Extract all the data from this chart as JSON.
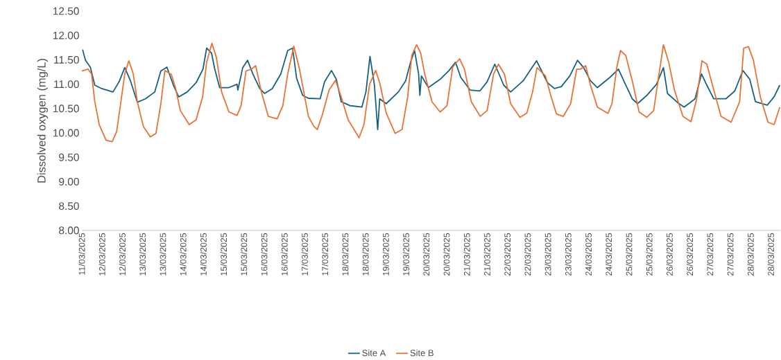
{
  "chart_data": {
    "type": "line",
    "ylabel": "Dissolved oxygen (mg/L)",
    "xlim": [
      "2025-03-11T12:00",
      "2025-03-28T17:46"
    ],
    "ylim": [
      8,
      12.5
    ],
    "yticks": [
      {
        "value": 8,
        "label": "8.00"
      },
      {
        "value": 8.5,
        "label": "8.50"
      },
      {
        "value": 9,
        "label": "9.00"
      },
      {
        "value": 9.5,
        "label": "9.50"
      },
      {
        "value": 10,
        "label": "10.00"
      },
      {
        "value": 10.5,
        "label": "10.50"
      },
      {
        "value": 11,
        "label": "11.00"
      },
      {
        "value": 11.5,
        "label": "11.50"
      },
      {
        "value": 12,
        "label": "12.00"
      },
      {
        "value": 12.5,
        "label": "12.50"
      }
    ],
    "xticks": [
      {
        "value": "2025-03-11T12:00",
        "label": "11/03/2025"
      },
      {
        "value": "2025-03-12T00:00",
        "label": "12/03/2025"
      },
      {
        "value": "2025-03-12T12:00",
        "label": "12/03/2025"
      },
      {
        "value": "2025-03-13T00:00",
        "label": "13/03/2025"
      },
      {
        "value": "2025-03-13T12:00",
        "label": "13/03/2025"
      },
      {
        "value": "2025-03-14T00:00",
        "label": "14/03/2025"
      },
      {
        "value": "2025-03-14T12:00",
        "label": "14/03/2025"
      },
      {
        "value": "2025-03-15T00:00",
        "label": "15/03/2025"
      },
      {
        "value": "2025-03-15T12:00",
        "label": "15/03/2025"
      },
      {
        "value": "2025-03-16T00:00",
        "label": "16/03/2025"
      },
      {
        "value": "2025-03-16T12:00",
        "label": "16/03/2025"
      },
      {
        "value": "2025-03-17T00:00",
        "label": "17/03/2025"
      },
      {
        "value": "2025-03-17T12:00",
        "label": "17/03/2025"
      },
      {
        "value": "2025-03-18T00:00",
        "label": "18/03/2025"
      },
      {
        "value": "2025-03-18T12:00",
        "label": "18/03/2025"
      },
      {
        "value": "2025-03-19T00:00",
        "label": "19/03/2025"
      },
      {
        "value": "2025-03-19T12:00",
        "label": "19/03/2025"
      },
      {
        "value": "2025-03-20T00:00",
        "label": "20/03/2025"
      },
      {
        "value": "2025-03-20T12:00",
        "label": "20/03/2025"
      },
      {
        "value": "2025-03-21T00:00",
        "label": "21/03/2025"
      },
      {
        "value": "2025-03-21T12:00",
        "label": "21/03/2025"
      },
      {
        "value": "2025-03-22T00:00",
        "label": "22/03/2025"
      },
      {
        "value": "2025-03-22T12:00",
        "label": "22/03/2025"
      },
      {
        "value": "2025-03-23T00:00",
        "label": "23/03/2025"
      },
      {
        "value": "2025-03-23T12:00",
        "label": "23/03/2025"
      },
      {
        "value": "2025-03-24T00:00",
        "label": "24/03/2025"
      },
      {
        "value": "2025-03-24T12:00",
        "label": "24/03/2025"
      },
      {
        "value": "2025-03-25T00:00",
        "label": "25/03/2025"
      },
      {
        "value": "2025-03-25T12:00",
        "label": "25/03/2025"
      },
      {
        "value": "2025-03-26T00:00",
        "label": "26/03/2025"
      },
      {
        "value": "2025-03-26T12:00",
        "label": "26/03/2025"
      },
      {
        "value": "2025-03-27T00:00",
        "label": "27/03/2025"
      },
      {
        "value": "2025-03-27T12:00",
        "label": "27/03/2025"
      },
      {
        "value": "2025-03-28T00:00",
        "label": "28/03/2025"
      },
      {
        "value": "2025-03-28T12:00",
        "label": "28/03/2025"
      }
    ],
    "grid": false,
    "legend": "bottom",
    "marker": "none",
    "line_style": "solid",
    "series": [
      {
        "name": "Site A",
        "color": "#156082",
        "x": [
          "2025-03-11T12:29",
          "2025-03-11T14:10",
          "2025-03-11T17:02",
          "2025-03-11T19:41",
          "2025-03-11T23:46",
          "2025-03-12T06:29",
          "2025-03-12T10:05",
          "2025-03-12T13:26",
          "2025-03-12T16:48",
          "2025-03-12T20:53",
          "2025-03-13T01:41",
          "2025-03-13T07:12",
          "2025-03-13T10:48",
          "2025-03-13T14:24",
          "2025-03-13T18:14",
          "2025-03-13T21:22",
          "2025-03-14T02:24",
          "2025-03-14T07:41",
          "2025-03-14T11:46",
          "2025-03-14T13:55",
          "2025-03-14T16:48",
          "2025-03-14T18:43",
          "2025-03-14T21:36",
          "2025-03-15T03:07",
          "2025-03-15T07:55",
          "2025-03-15T08:24",
          "2025-03-15T11:17",
          "2025-03-15T14:10",
          "2025-03-15T17:17",
          "2025-03-15T21:22",
          "2025-03-16T00:14",
          "2025-03-16T04:48",
          "2025-03-16T09:50",
          "2025-03-16T13:55",
          "2025-03-16T16:48",
          "2025-03-16T19:12",
          "2025-03-16T22:48",
          "2025-03-17T02:10",
          "2025-03-17T09:07",
          "2025-03-17T11:46",
          "2025-03-17T15:50",
          "2025-03-17T18:43",
          "2025-03-17T21:36",
          "2025-03-18T02:53",
          "2025-03-18T09:50",
          "2025-03-18T12:14",
          "2025-03-18T14:38",
          "2025-03-18T17:17",
          "2025-03-18T19:12",
          "2025-03-18T20:24",
          "2025-03-19T00:14",
          "2025-03-19T07:26",
          "2025-03-19T11:46",
          "2025-03-19T14:38",
          "2025-03-19T17:02",
          "2025-03-19T19:26",
          "2025-03-19T20:10",
          "2025-03-19T21:07",
          "2025-03-20T01:12",
          "2025-03-20T08:10",
          "2025-03-20T13:26",
          "2025-03-20T17:17",
          "2025-03-20T20:24",
          "2025-03-21T01:55",
          "2025-03-21T07:41",
          "2025-03-21T12:00",
          "2025-03-21T16:34",
          "2025-03-21T21:50",
          "2025-03-22T01:55",
          "2025-03-22T09:22",
          "2025-03-22T17:17",
          "2025-03-22T23:46",
          "2025-03-23T03:50",
          "2025-03-23T07:55",
          "2025-03-23T12:58",
          "2025-03-23T17:31",
          "2025-03-23T21:07",
          "2025-03-24T01:12",
          "2025-03-24T05:17",
          "2025-03-24T12:43",
          "2025-03-24T17:46",
          "2025-03-24T20:53",
          "2025-03-25T01:55",
          "2025-03-25T05:02",
          "2025-03-25T10:34",
          "2025-03-25T16:19",
          "2025-03-25T20:24",
          "2025-03-25T22:48",
          "2025-03-26T04:34",
          "2025-03-26T08:38",
          "2025-03-26T15:07",
          "2025-03-26T18:58",
          "2025-03-26T21:22",
          "2025-03-27T02:10",
          "2025-03-27T09:22",
          "2025-03-27T14:38",
          "2025-03-27T19:26",
          "2025-03-27T23:31",
          "2025-03-28T02:53",
          "2025-03-28T09:50",
          "2025-03-28T13:55",
          "2025-03-28T17:17"
        ],
        "values": [
          11.71,
          11.49,
          11.35,
          10.98,
          10.91,
          10.84,
          11.05,
          11.34,
          11.07,
          10.63,
          10.7,
          10.84,
          11.27,
          11.35,
          10.98,
          10.74,
          10.84,
          11.03,
          11.31,
          11.74,
          11.64,
          11.31,
          10.93,
          10.93,
          11.0,
          10.88,
          11.34,
          11.49,
          11.21,
          10.91,
          10.81,
          10.91,
          11.21,
          11.69,
          11.74,
          11.12,
          10.77,
          10.71,
          10.7,
          11.05,
          11.28,
          11.1,
          10.64,
          10.56,
          10.53,
          10.84,
          11.57,
          10.98,
          10.07,
          10.7,
          10.6,
          10.84,
          11.07,
          11.45,
          11.69,
          11.21,
          10.77,
          11.17,
          10.93,
          11.1,
          11.28,
          11.45,
          11.14,
          10.88,
          10.86,
          11.05,
          11.41,
          10.98,
          10.84,
          11.07,
          11.48,
          11.03,
          10.91,
          10.95,
          11.17,
          11.49,
          11.34,
          11.07,
          10.93,
          11.14,
          11.31,
          11.07,
          10.7,
          10.6,
          10.77,
          11.0,
          11.34,
          10.81,
          10.63,
          10.53,
          10.7,
          11.21,
          11.03,
          10.7,
          10.7,
          10.86,
          11.28,
          11.1,
          10.64,
          10.57,
          10.74,
          10.98
        ]
      },
      {
        "name": "Site B",
        "color": "#e97132",
        "x": [
          "2025-03-11T12:00",
          "2025-03-11T15:36",
          "2025-03-11T17:46",
          "2025-03-11T19:41",
          "2025-03-11T22:19",
          "2025-03-12T02:24",
          "2025-03-12T06:00",
          "2025-03-12T08:38",
          "2025-03-12T10:34",
          "2025-03-12T13:26",
          "2025-03-12T15:50",
          "2025-03-12T18:29",
          "2025-03-12T20:53",
          "2025-03-13T00:29",
          "2025-03-13T04:34",
          "2025-03-13T07:55",
          "2025-03-13T10:48",
          "2025-03-13T13:12",
          "2025-03-13T17:02",
          "2025-03-13T19:26",
          "2025-03-13T22:19",
          "2025-03-14T03:36",
          "2025-03-14T07:41",
          "2025-03-14T11:31",
          "2025-03-14T13:55",
          "2025-03-14T17:02",
          "2025-03-14T19:41",
          "2025-03-14T22:48",
          "2025-03-15T03:07",
          "2025-03-15T07:55",
          "2025-03-15T10:19",
          "2025-03-15T13:12",
          "2025-03-15T16:34",
          "2025-03-15T18:58",
          "2025-03-15T22:19",
          "2025-03-16T02:24",
          "2025-03-16T07:41",
          "2025-03-16T11:02",
          "2025-03-16T13:55",
          "2025-03-16T17:31",
          "2025-03-16T20:53",
          "2025-03-17T00:58",
          "2025-03-17T02:10",
          "2025-03-17T05:31",
          "2025-03-17T07:26",
          "2025-03-17T10:19",
          "2025-03-17T14:24",
          "2025-03-17T18:14",
          "2025-03-17T21:36",
          "2025-03-18T01:41",
          "2025-03-18T08:10",
          "2025-03-18T11:02",
          "2025-03-18T14:24",
          "2025-03-18T18:00",
          "2025-03-18T20:24",
          "2025-03-19T00:14",
          "2025-03-19T05:31",
          "2025-03-19T09:36",
          "2025-03-19T12:58",
          "2025-03-19T15:22",
          "2025-03-19T18:14",
          "2025-03-19T20:38",
          "2025-03-19T23:02",
          "2025-03-20T03:22",
          "2025-03-20T08:10",
          "2025-03-20T12:14",
          "2025-03-20T15:36",
          "2025-03-20T19:41",
          "2025-03-20T22:34",
          "2025-03-21T02:38",
          "2025-03-21T07:55",
          "2025-03-21T12:00",
          "2025-03-21T15:50",
          "2025-03-21T18:43",
          "2025-03-21T22:19",
          "2025-03-22T01:55",
          "2025-03-22T07:26",
          "2025-03-22T11:31",
          "2025-03-22T14:53",
          "2025-03-22T17:31",
          "2025-03-22T22:34",
          "2025-03-23T01:55",
          "2025-03-23T05:02",
          "2025-03-23T09:07",
          "2025-03-23T13:26",
          "2025-03-23T17:02",
          "2025-03-23T19:26",
          "2025-03-23T22:19",
          "2025-03-24T01:12",
          "2025-03-24T05:17",
          "2025-03-24T11:31",
          "2025-03-24T13:55",
          "2025-03-24T16:48",
          "2025-03-24T18:58",
          "2025-03-24T22:05",
          "2025-03-25T01:55",
          "2025-03-25T06:00",
          "2025-03-25T10:34",
          "2025-03-25T14:38",
          "2025-03-25T17:46",
          "2025-03-25T20:24",
          "2025-03-25T23:31",
          "2025-03-26T02:53",
          "2025-03-26T07:55",
          "2025-03-26T12:43",
          "2025-03-26T16:05",
          "2025-03-26T19:12",
          "2025-03-26T22:05",
          "2025-03-27T01:26",
          "2025-03-27T06:29",
          "2025-03-27T12:29",
          "2025-03-27T17:31",
          "2025-03-27T19:55",
          "2025-03-27T22:48",
          "2025-03-28T01:41",
          "2025-03-28T05:46",
          "2025-03-28T10:19",
          "2025-03-28T13:55",
          "2025-03-28T17:17"
        ],
        "values": [
          11.27,
          11.31,
          11.21,
          10.64,
          10.17,
          9.85,
          9.82,
          10.03,
          10.5,
          11.21,
          11.48,
          11.21,
          10.64,
          10.13,
          9.92,
          9.99,
          10.6,
          11.28,
          11.2,
          10.93,
          10.46,
          10.17,
          10.27,
          10.74,
          11.45,
          11.84,
          11.55,
          10.84,
          10.43,
          10.36,
          10.56,
          11.27,
          11.31,
          11.38,
          10.84,
          10.34,
          10.29,
          10.56,
          11.21,
          11.78,
          11.31,
          10.56,
          10.34,
          10.13,
          10.07,
          10.36,
          10.88,
          11.08,
          10.74,
          10.27,
          9.9,
          10.17,
          11.0,
          11.28,
          11.03,
          10.41,
          9.99,
          10.07,
          10.74,
          11.59,
          11.81,
          11.64,
          11.21,
          10.64,
          10.43,
          10.56,
          11.35,
          11.52,
          11.31,
          10.64,
          10.34,
          10.46,
          11.21,
          11.41,
          11.2,
          10.6,
          10.32,
          10.41,
          10.84,
          11.34,
          11.17,
          10.74,
          10.39,
          10.34,
          10.6,
          11.31,
          11.31,
          11.38,
          10.98,
          10.53,
          10.4,
          10.6,
          11.35,
          11.69,
          11.59,
          11.07,
          10.43,
          10.32,
          10.46,
          11.21,
          11.81,
          11.45,
          10.88,
          10.34,
          10.23,
          10.7,
          11.48,
          11.41,
          10.98,
          10.34,
          10.22,
          10.64,
          11.74,
          11.77,
          11.49,
          10.74,
          10.22,
          10.17,
          10.53
        ]
      }
    ]
  }
}
